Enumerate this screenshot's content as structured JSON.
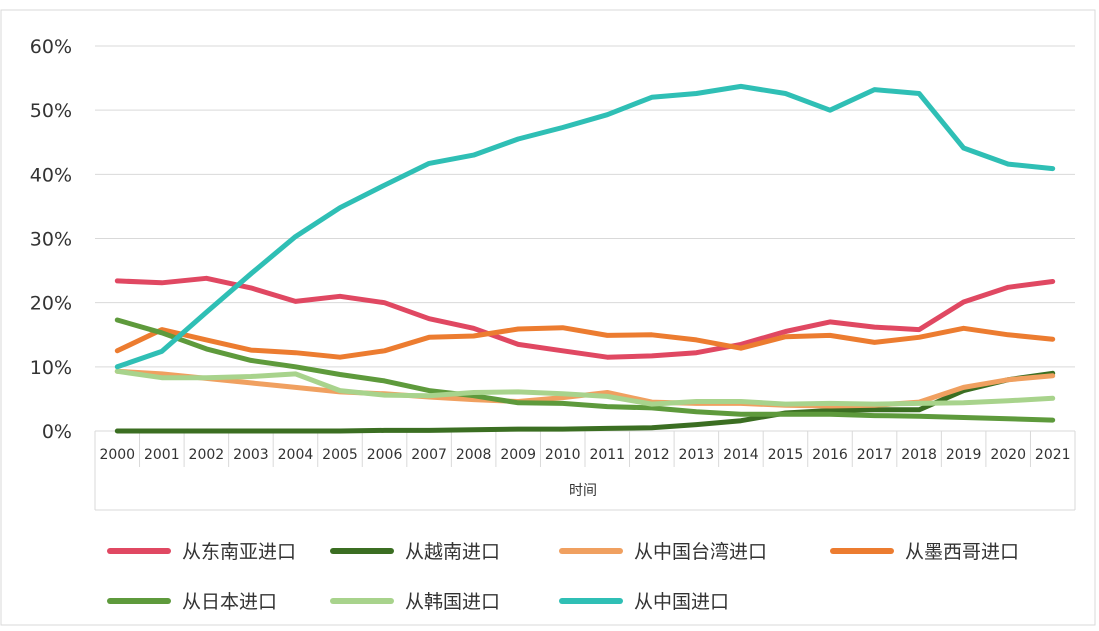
{
  "chart_data": {
    "type": "line",
    "x_label": "时间",
    "categories": [
      "2000",
      "2001",
      "2002",
      "2003",
      "2004",
      "2005",
      "2006",
      "2007",
      "2008",
      "2009",
      "2010",
      "2011",
      "2012",
      "2013",
      "2014",
      "2015",
      "2016",
      "2017",
      "2018",
      "2019",
      "2020",
      "2021"
    ],
    "ylim": [
      0,
      60
    ],
    "yticks": [
      {
        "value": 0,
        "label": "0%"
      },
      {
        "value": 10,
        "label": "10%"
      },
      {
        "value": 20,
        "label": "20%"
      },
      {
        "value": 30,
        "label": "30%"
      },
      {
        "value": 40,
        "label": "40%"
      },
      {
        "value": 50,
        "label": "50%"
      },
      {
        "value": 60,
        "label": "60%"
      }
    ],
    "grid": true,
    "series": [
      {
        "name": "从东南亚进口",
        "color": "#e04862",
        "values": [
          23.4,
          23.1,
          23.8,
          22.3,
          20.2,
          21.0,
          20.0,
          17.5,
          16.0,
          13.5,
          12.5,
          11.5,
          11.7,
          12.2,
          13.5,
          15.5,
          17.0,
          16.2,
          15.8,
          20.1,
          22.4,
          23.3
        ]
      },
      {
        "name": "从越南进口",
        "color": "#3b6e22",
        "values": [
          0,
          0,
          0,
          0,
          0,
          0,
          0.1,
          0.1,
          0.2,
          0.3,
          0.3,
          0.4,
          0.5,
          1.0,
          1.6,
          2.8,
          3.2,
          3.3,
          3.3,
          6.3,
          8.0,
          9.0
        ]
      },
      {
        "name": "从中国台湾进口",
        "color": "#f0a060",
        "values": [
          9.3,
          8.9,
          8.2,
          7.5,
          6.8,
          6.1,
          5.8,
          5.3,
          4.9,
          4.6,
          5.2,
          6.0,
          4.5,
          4.3,
          4.3,
          4.0,
          3.9,
          4.0,
          4.5,
          6.8,
          8.0,
          8.6
        ]
      },
      {
        "name": "从墨西哥进口",
        "color": "#ec7c30",
        "values": [
          12.5,
          15.8,
          14.2,
          12.6,
          12.2,
          11.5,
          12.5,
          14.6,
          14.8,
          15.9,
          16.1,
          14.9,
          15.0,
          14.2,
          12.9,
          14.7,
          14.9,
          13.8,
          14.6,
          16.0,
          15.0,
          14.3
        ]
      },
      {
        "name": "从日本进口",
        "color": "#5e9a3c",
        "values": [
          17.3,
          15.3,
          12.8,
          11.0,
          10.0,
          8.8,
          7.8,
          6.3,
          5.5,
          4.4,
          4.3,
          3.8,
          3.6,
          3.0,
          2.6,
          2.6,
          2.6,
          2.4,
          2.3,
          2.1,
          1.9,
          1.7
        ]
      },
      {
        "name": "从韩国进口",
        "color": "#a8d38c",
        "values": [
          9.3,
          8.3,
          8.3,
          8.5,
          8.9,
          6.3,
          5.6,
          5.5,
          6.0,
          6.1,
          5.8,
          5.4,
          4.2,
          4.6,
          4.6,
          4.2,
          4.3,
          4.2,
          4.3,
          4.4,
          4.7,
          5.1
        ]
      },
      {
        "name": "从中国进口",
        "color": "#2fbfb5",
        "values": [
          10.0,
          12.4,
          18.5,
          24.5,
          30.3,
          34.8,
          38.3,
          41.7,
          43.0,
          45.5,
          47.3,
          49.3,
          52.0,
          52.6,
          53.7,
          52.6,
          50.0,
          53.2,
          52.6,
          44.1,
          41.6,
          40.9
        ]
      }
    ]
  }
}
